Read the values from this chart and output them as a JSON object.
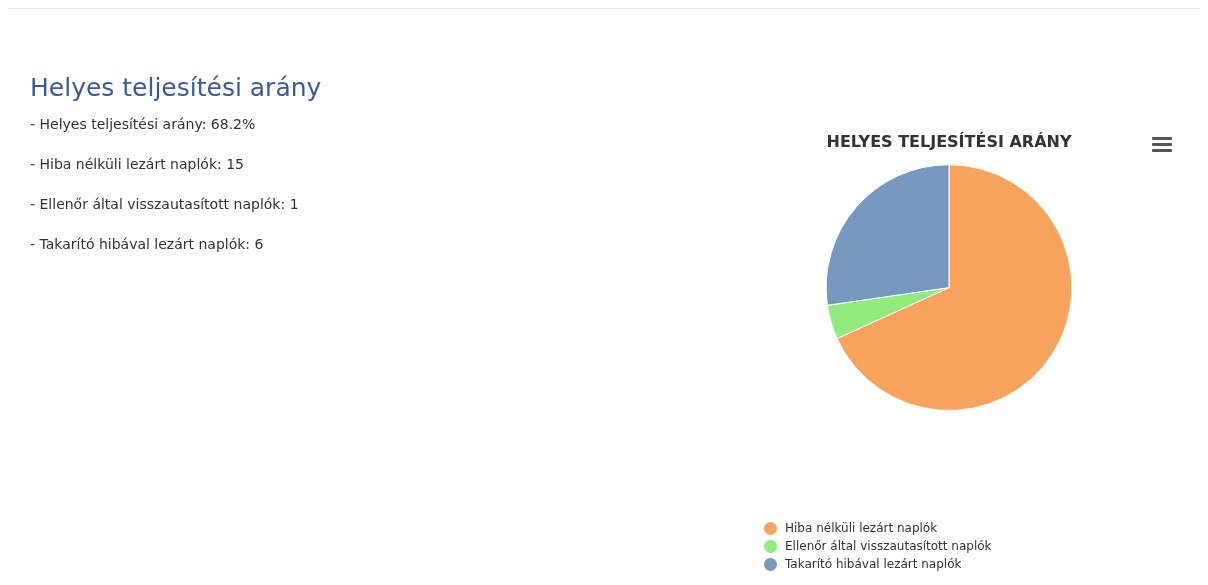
{
  "chart_data": [
    {
      "type": "other",
      "title": "Helyes teljesítési arány",
      "annotations": [
        "- Helyes teljesítési arány: 68.2%",
        "- Hiba nélküli lezárt naplók: 15",
        "- Ellenőr által visszautasított naplók: 1",
        "- Takarító hibával lezárt naplók: 6"
      ]
    },
    {
      "type": "pie",
      "title": "HELYES TELJESÍTÉSI ARÁNY",
      "categories": [
        "Hiba nélküli lezárt naplók",
        "Ellenőr által visszautasított naplók",
        "Takarító hibával lezárt naplók"
      ],
      "values": [
        68.2,
        4.5,
        27.3
      ],
      "colors": [
        "#f7a35c",
        "#90ed7d",
        "#7798bf"
      ],
      "legend": "bottom"
    }
  ]
}
